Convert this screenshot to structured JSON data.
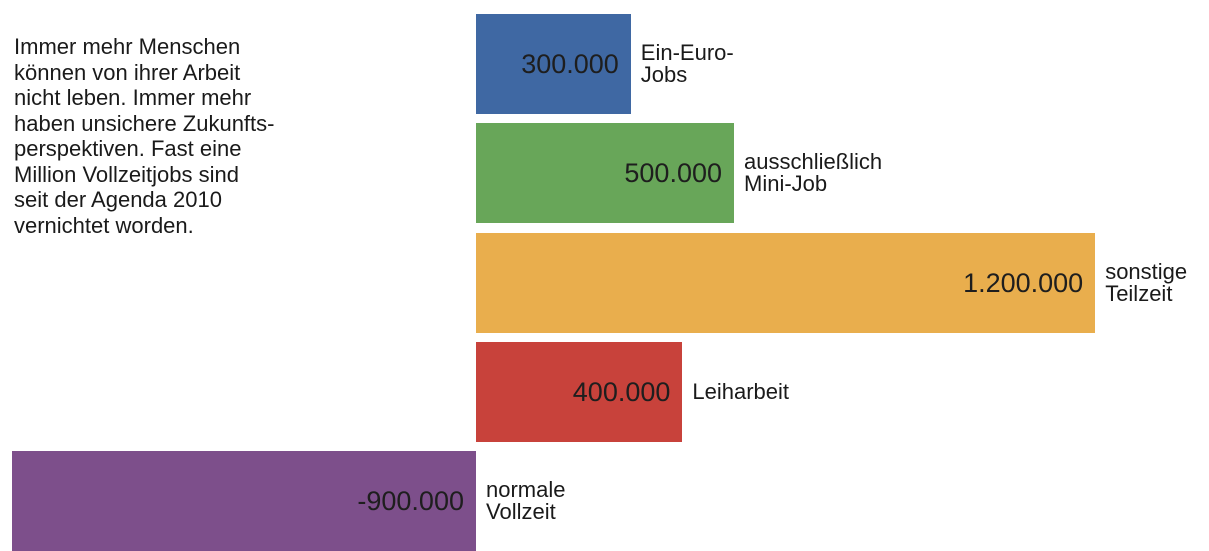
{
  "chart_data": {
    "type": "bar",
    "orientation": "horizontal",
    "annotation": "Immer mehr Menschen\nkönnen von ihrer Arbeit\nnicht leben. Immer mehr\nhaben unsichere Zukunfts-\nperspektiven. Fast eine\nMillion Vollzeitjobs sind\nseit der Agenda 2010\nvernichtet worden.",
    "categories": [
      "Ein-Euro-Jobs",
      "ausschließlich Mini-Job",
      "sonstige Teilzeit",
      "Leiharbeit",
      "normale Vollzeit"
    ],
    "values": [
      300000,
      500000,
      1200000,
      400000,
      -900000
    ],
    "value_labels": [
      "300.000",
      "500.000",
      "1.200.000",
      "400.000",
      "-900.000"
    ],
    "colors": [
      "#3f68a3",
      "#68a659",
      "#e9ae4d",
      "#c8423b",
      "#7d4f8b"
    ]
  }
}
